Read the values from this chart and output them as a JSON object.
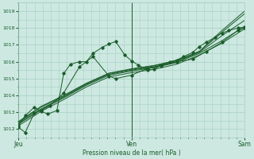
{
  "bg_color": "#cce8e0",
  "plot_bg_color": "#cce8e0",
  "grid_color": "#a8cfc4",
  "line_color": "#1a5c2a",
  "marker_color": "#1a5c2a",
  "xlabel_text": "Pression niveau de la mer( hPa )",
  "xtick_labels": [
    "Jeu",
    "Ven",
    "Sam"
  ],
  "ylim": [
    1011.5,
    1019.5
  ],
  "yticks": [
    1012,
    1013,
    1014,
    1015,
    1016,
    1017,
    1018,
    1019
  ],
  "series": [
    [
      0.0,
      1012.2,
      0.03,
      1012.8,
      0.07,
      1013.3,
      0.1,
      1013.05,
      0.13,
      1012.9,
      0.17,
      1013.1,
      0.2,
      1015.3,
      0.23,
      1015.85,
      0.27,
      1016.0,
      0.3,
      1016.0,
      0.33,
      1016.5,
      0.37,
      1016.85,
      0.4,
      1017.05,
      0.43,
      1017.2,
      0.47,
      1016.4,
      0.5,
      1016.05,
      0.53,
      1015.8,
      0.57,
      1015.5,
      0.6,
      1015.55,
      0.63,
      1015.8,
      0.67,
      1016.0,
      0.7,
      1016.1,
      0.73,
      1016.3,
      0.77,
      1016.55,
      0.8,
      1016.9,
      0.83,
      1017.15,
      0.87,
      1017.45,
      0.9,
      1017.7,
      0.93,
      1017.85,
      0.97,
      1018.0,
      1.0,
      1018.05
    ],
    [
      0.0,
      1012.1,
      0.03,
      1011.8,
      0.07,
      1012.95,
      0.1,
      1013.1,
      0.14,
      1013.4,
      0.2,
      1014.15,
      0.27,
      1015.7,
      0.33,
      1016.3,
      0.4,
      1015.15,
      0.43,
      1015.0,
      0.5,
      1015.2,
      0.57,
      1015.6,
      0.63,
      1015.75,
      0.7,
      1016.0,
      0.77,
      1016.15,
      0.83,
      1016.6,
      0.9,
      1017.15,
      0.97,
      1017.85,
      1.0,
      1018.0
    ],
    [
      0.0,
      1012.2,
      0.1,
      1013.05,
      0.2,
      1013.75,
      0.3,
      1014.5,
      0.4,
      1015.1,
      0.5,
      1015.35,
      0.6,
      1015.55,
      0.7,
      1015.85,
      0.8,
      1016.4,
      0.9,
      1017.1,
      1.0,
      1017.95
    ],
    [
      0.0,
      1012.3,
      0.1,
      1013.15,
      0.2,
      1013.85,
      0.3,
      1014.6,
      0.4,
      1015.2,
      0.5,
      1015.45,
      0.6,
      1015.65,
      0.7,
      1015.95,
      0.8,
      1016.5,
      0.9,
      1017.25,
      1.0,
      1018.1
    ],
    [
      0.0,
      1012.35,
      0.1,
      1013.2,
      0.2,
      1013.9,
      0.3,
      1014.65,
      0.4,
      1015.25,
      0.5,
      1015.5,
      0.6,
      1015.7,
      0.7,
      1016.0,
      0.8,
      1016.55,
      0.9,
      1017.55,
      1.0,
      1018.45
    ],
    [
      0.0,
      1012.4,
      0.1,
      1013.3,
      0.2,
      1013.95,
      0.3,
      1014.7,
      0.4,
      1015.3,
      0.5,
      1015.55,
      0.6,
      1015.75,
      0.7,
      1016.05,
      0.8,
      1016.6,
      0.9,
      1017.75,
      1.0,
      1018.85
    ],
    [
      0.0,
      1012.45,
      0.1,
      1013.35,
      0.2,
      1014.0,
      0.3,
      1014.72,
      0.4,
      1015.32,
      0.5,
      1015.58,
      0.6,
      1015.78,
      0.7,
      1016.08,
      0.8,
      1016.62,
      0.9,
      1017.85,
      1.0,
      1019.0
    ]
  ]
}
